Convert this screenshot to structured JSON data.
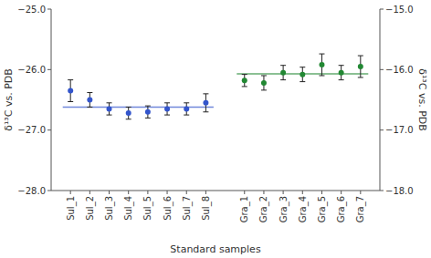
{
  "chart_data": {
    "type": "scatter",
    "categories": [
      "Sul_1",
      "Sul_2",
      "Sul_3",
      "Sul_4",
      "Sul_5",
      "Sul_6",
      "Sul_7",
      "Sul_8",
      null,
      "Gra_1",
      "Gra_2",
      "Gra_3",
      "Gra_4",
      "Gra_5",
      "Gra_6",
      "Gra_7"
    ],
    "series": [
      {
        "values": [
          -26.35,
          -26.5,
          -26.65,
          -26.72,
          -26.7,
          -26.65,
          -26.65,
          -26.55,
          null,
          null,
          null,
          null,
          null,
          null,
          null,
          null
        ],
        "errors": [
          0.18,
          0.12,
          0.1,
          0.1,
          0.1,
          0.1,
          0.1,
          0.15,
          null,
          null,
          null,
          null,
          null,
          null,
          null,
          null
        ],
        "mean": -26.62,
        "color": "#3355cc",
        "marker": "circle"
      },
      {
        "axis": "y2",
        "values": [
          null,
          null,
          null,
          null,
          null,
          null,
          null,
          null,
          null,
          -16.18,
          -16.22,
          -16.05,
          -16.08,
          -15.92,
          -16.05,
          -15.95
        ],
        "errors": [
          null,
          null,
          null,
          null,
          null,
          null,
          null,
          null,
          null,
          0.1,
          0.12,
          0.12,
          0.12,
          0.18,
          0.12,
          0.18
        ],
        "mean": -16.07,
        "color": "#228833",
        "marker": "circle"
      }
    ],
    "xlabel": "Standard samples",
    "ylabel": "δ¹³C vs. PDB",
    "y2label": "δ¹³C vs. PDB",
    "ylim": [
      -28.0,
      -25.0
    ],
    "yticks": [
      {
        "value": -28.0,
        "label": "−28.0"
      },
      {
        "value": -27.0,
        "label": "−27.0"
      },
      {
        "value": -26.0,
        "label": "−26.0"
      },
      {
        "value": -25.0,
        "label": "−25.0"
      }
    ],
    "y2lim": [
      -18.0,
      -15.0
    ],
    "y2ticks": [
      {
        "value": -18.0,
        "label": "−18.0"
      },
      {
        "value": -17.0,
        "label": "−17.0"
      },
      {
        "value": -16.0,
        "label": "−16.0"
      },
      {
        "value": -15.0,
        "label": "−15.0"
      }
    ],
    "grid": false
  }
}
